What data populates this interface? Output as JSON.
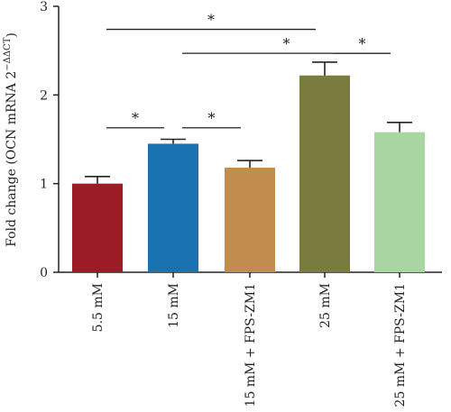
{
  "chart_data": {
    "type": "bar",
    "title": "",
    "xlabel": "",
    "ylabel": "Fold change (OCN mRNA 2",
    "ylabel_superscript": "−ΔΔCT",
    "ylabel_close": ")",
    "ylim": [
      0,
      3
    ],
    "yticks": [
      "0",
      "1",
      "2",
      "3"
    ],
    "categories": [
      "5.5 mM",
      "15 mM",
      "15 mM + FPS-ZM1",
      "25 mM",
      "25 mM + FPS-ZM1"
    ],
    "values": [
      1.0,
      1.45,
      1.18,
      2.22,
      1.58
    ],
    "errors": [
      0.08,
      0.05,
      0.08,
      0.15,
      0.11
    ],
    "colors": [
      "#9b1c24",
      "#1a73b0",
      "#c08d4e",
      "#7a7b3e",
      "#a9d5a3"
    ],
    "significance": [
      {
        "from": 0,
        "to": 1,
        "level": 1.63,
        "label": "*"
      },
      {
        "from": 1,
        "to": 2,
        "level": 1.63,
        "label": "*"
      },
      {
        "from": 1,
        "to": 4,
        "level": 2.47,
        "label": "*"
      },
      {
        "from": 3,
        "to": 4,
        "level": 2.47,
        "label": "*"
      },
      {
        "from": 0,
        "to": 3,
        "level": 2.74,
        "label": "*"
      }
    ],
    "grid": false,
    "legend": "none"
  }
}
